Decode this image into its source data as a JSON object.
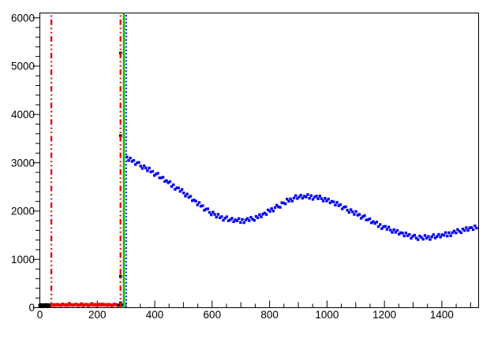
{
  "window": {
    "background": "#ffffff"
  },
  "chart_data": {
    "type": "scatter",
    "title": "",
    "xlabel": "",
    "ylabel": "",
    "grid": false,
    "legend": "none",
    "xlim": [
      0,
      1528
    ],
    "ylim": [
      0,
      6100
    ],
    "axis_color": "#000000",
    "x_ticks": {
      "minor_step": 50,
      "medium_step": 100,
      "major_step": 200,
      "max_tick": 1500,
      "labels": [
        "0",
        "200",
        "400",
        "600",
        "800",
        "1000",
        "1200",
        "1400"
      ],
      "label_values": [
        0,
        200,
        400,
        600,
        800,
        1000,
        1200,
        1400
      ]
    },
    "y_ticks": {
      "minor_step": 200,
      "major_step": 1000,
      "labels": [
        "0",
        "1000",
        "2000",
        "3000",
        "4000",
        "5000",
        "6000"
      ],
      "label_values": [
        0,
        1000,
        2000,
        3000,
        4000,
        5000,
        6000
      ]
    },
    "vlines": [
      {
        "name": "cut-line-low-red",
        "x": 40,
        "color": "#e51010",
        "style": "dash-dot-dot",
        "width": 2.4
      },
      {
        "name": "cut-line-high-red",
        "x": 281,
        "color": "#e51010",
        "style": "dash-dot-dot",
        "width": 2.4
      },
      {
        "name": "boundary-line-green",
        "x": 292.5,
        "color": "#00bf00",
        "style": "solid",
        "width": 2.6
      },
      {
        "name": "boundary-line-blue",
        "x": 300.5,
        "color": "#0000f2",
        "style": "dotted",
        "width": 2.0
      }
    ],
    "series": [
      {
        "name": "pedestal-black",
        "kind": "baseline",
        "color": "#000000",
        "marker_px": 4.6,
        "x_start": 1,
        "x_end": 40,
        "x_step": 5,
        "baseline": 45,
        "noise": [
          0,
          8,
          -6,
          4,
          10,
          -4,
          6,
          0,
          -8
        ]
      },
      {
        "name": "baseline-red",
        "kind": "baseline",
        "color": "#ee0000",
        "marker_px": 4.0,
        "x_start": 43,
        "x_end": 272,
        "x_step": 6,
        "baseline": 55,
        "noise": [
          0,
          6,
          -4,
          10,
          -2,
          -8,
          16,
          4,
          -6,
          8,
          28,
          2,
          -4,
          6,
          14,
          -8,
          0,
          22,
          -6,
          6,
          10,
          -10,
          4,
          26,
          -2,
          8,
          -6,
          12,
          0,
          18
        ]
      },
      {
        "name": "spike-black",
        "kind": "points",
        "color": "#000000",
        "marker_px": 3.6,
        "points": [
          [
            274,
            55
          ],
          [
            278,
            48
          ],
          [
            281,
            100
          ],
          [
            285,
            55
          ],
          [
            281,
            650
          ],
          [
            281,
            3560
          ],
          [
            281,
            5270
          ]
        ]
      },
      {
        "name": "signal-blue",
        "kind": "curve",
        "color": "#0000f2",
        "marker_px": 3.4,
        "x_step": 6,
        "noise_amplitude": 48,
        "noise": [
          18,
          -32,
          40,
          -10,
          26,
          -44,
          6,
          34,
          -20,
          -48,
          28,
          2,
          -34,
          44,
          -14,
          20,
          -42,
          10,
          48,
          -24,
          0,
          36,
          -28,
          14,
          -6,
          42,
          -36,
          24,
          -46,
          8,
          32,
          -16,
          46,
          -2,
          -38,
          30,
          -12,
          38,
          -26,
          16
        ],
        "anchors": [
          [
            303,
            3100
          ],
          [
            320,
            3040
          ],
          [
            340,
            2990
          ],
          [
            360,
            2920
          ],
          [
            380,
            2850
          ],
          [
            400,
            2775
          ],
          [
            420,
            2700
          ],
          [
            440,
            2620
          ],
          [
            460,
            2540
          ],
          [
            480,
            2460
          ],
          [
            500,
            2380
          ],
          [
            520,
            2290
          ],
          [
            540,
            2200
          ],
          [
            560,
            2115
          ],
          [
            580,
            2030
          ],
          [
            600,
            1960
          ],
          [
            620,
            1890
          ],
          [
            640,
            1850
          ],
          [
            660,
            1820
          ],
          [
            680,
            1805
          ],
          [
            700,
            1800
          ],
          [
            720,
            1810
          ],
          [
            740,
            1830
          ],
          [
            760,
            1875
          ],
          [
            780,
            1930
          ],
          [
            800,
            2000
          ],
          [
            820,
            2070
          ],
          [
            840,
            2135
          ],
          [
            860,
            2200
          ],
          [
            880,
            2250
          ],
          [
            900,
            2290
          ],
          [
            920,
            2295
          ],
          [
            940,
            2300
          ],
          [
            960,
            2280
          ],
          [
            980,
            2260
          ],
          [
            1000,
            2220
          ],
          [
            1020,
            2180
          ],
          [
            1040,
            2125
          ],
          [
            1060,
            2070
          ],
          [
            1080,
            2010
          ],
          [
            1100,
            1950
          ],
          [
            1120,
            1890
          ],
          [
            1140,
            1830
          ],
          [
            1160,
            1770
          ],
          [
            1180,
            1710
          ],
          [
            1200,
            1660
          ],
          [
            1220,
            1610
          ],
          [
            1240,
            1570
          ],
          [
            1260,
            1530
          ],
          [
            1280,
            1500
          ],
          [
            1300,
            1470
          ],
          [
            1320,
            1455
          ],
          [
            1340,
            1450
          ],
          [
            1360,
            1455
          ],
          [
            1380,
            1470
          ],
          [
            1400,
            1495
          ],
          [
            1420,
            1520
          ],
          [
            1440,
            1550
          ],
          [
            1460,
            1580
          ],
          [
            1480,
            1610
          ],
          [
            1500,
            1640
          ],
          [
            1523,
            1660
          ]
        ]
      }
    ]
  }
}
